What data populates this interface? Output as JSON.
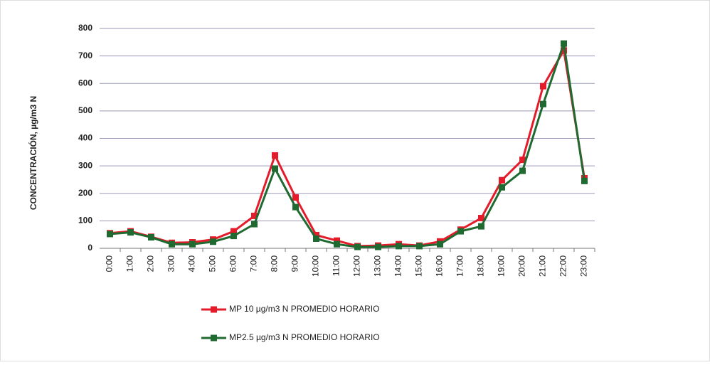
{
  "chart_data": {
    "type": "line",
    "y_label": "CONCENTRACIÓN, µg/m3 N",
    "categories": [
      "0:00",
      "1:00",
      "2:00",
      "3:00",
      "4:00",
      "5:00",
      "6:00",
      "7:00",
      "8:00",
      "9:00",
      "10:00",
      "11:00",
      "12:00",
      "13:00",
      "14:00",
      "15:00",
      "16:00",
      "17:00",
      "18:00",
      "19:00",
      "20:00",
      "21:00",
      "22:00",
      "23:00"
    ],
    "series": [
      {
        "name": "MP 10 µg/m3 N PROMEDIO HORARIO",
        "color": "#e31b2b",
        "values": [
          55,
          62,
          42,
          20,
          22,
          32,
          62,
          118,
          338,
          185,
          48,
          28,
          8,
          10,
          15,
          10,
          25,
          68,
          110,
          248,
          322,
          590,
          720,
          255
        ]
      },
      {
        "name": "MP2.5 µg/m3 N PROMEDIO HORARIO",
        "color": "#1f6a30",
        "values": [
          52,
          58,
          40,
          15,
          15,
          24,
          45,
          88,
          290,
          150,
          35,
          15,
          5,
          5,
          8,
          8,
          15,
          62,
          80,
          222,
          282,
          525,
          745,
          245
        ]
      }
    ],
    "ylim": [
      0,
      800
    ],
    "yticks": [
      0,
      100,
      200,
      300,
      400,
      500,
      600,
      700,
      800
    ],
    "grid": true
  }
}
